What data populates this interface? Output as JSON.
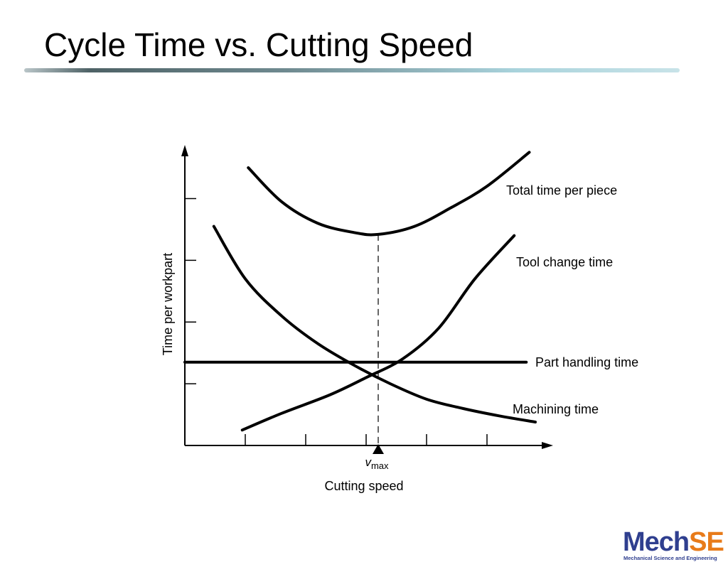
{
  "slide": {
    "title": "Cycle Time vs. Cutting Speed"
  },
  "logo": {
    "text_main": "Mech",
    "text_accent": "SE",
    "subtitle": "Mechanical Science and Engineering",
    "colors": {
      "main": "#2f3f8f",
      "accent": "#e87b1a"
    }
  },
  "chart_data": {
    "type": "line",
    "xlabel": "Cutting speed",
    "ylabel": "Time per workpart",
    "xlim": [
      0,
      6
    ],
    "ylim": [
      0,
      4.8
    ],
    "xticks": [
      1,
      2,
      3,
      4,
      5
    ],
    "yticks": [
      1,
      2,
      3,
      4
    ],
    "tick_labels_shown": false,
    "grid": false,
    "marker": {
      "label": "v",
      "subscript": "max",
      "x": 3.2
    },
    "series": [
      {
        "name": "Total time per piece",
        "x": [
          1.05,
          1.6,
          2.2,
          2.8,
          3.2,
          3.8,
          4.4,
          5.0,
          5.7
        ],
        "y": [
          4.5,
          3.95,
          3.6,
          3.45,
          3.42,
          3.55,
          3.85,
          4.2,
          4.75
        ]
      },
      {
        "name": "Tool change time",
        "x": [
          0.95,
          1.6,
          2.4,
          3.0,
          3.6,
          4.2,
          4.8,
          5.45
        ],
        "y": [
          0.25,
          0.52,
          0.82,
          1.1,
          1.4,
          1.9,
          2.7,
          3.4
        ]
      },
      {
        "name": "Part handling time",
        "x": [
          0.0,
          5.65
        ],
        "y": [
          1.35,
          1.35
        ]
      },
      {
        "name": "Machining time",
        "x": [
          0.48,
          1.0,
          1.6,
          2.2,
          2.8,
          3.4,
          4.0,
          4.6,
          5.2,
          5.8
        ],
        "y": [
          3.55,
          2.7,
          2.1,
          1.65,
          1.3,
          1.0,
          0.75,
          0.6,
          0.48,
          0.38
        ]
      }
    ]
  }
}
